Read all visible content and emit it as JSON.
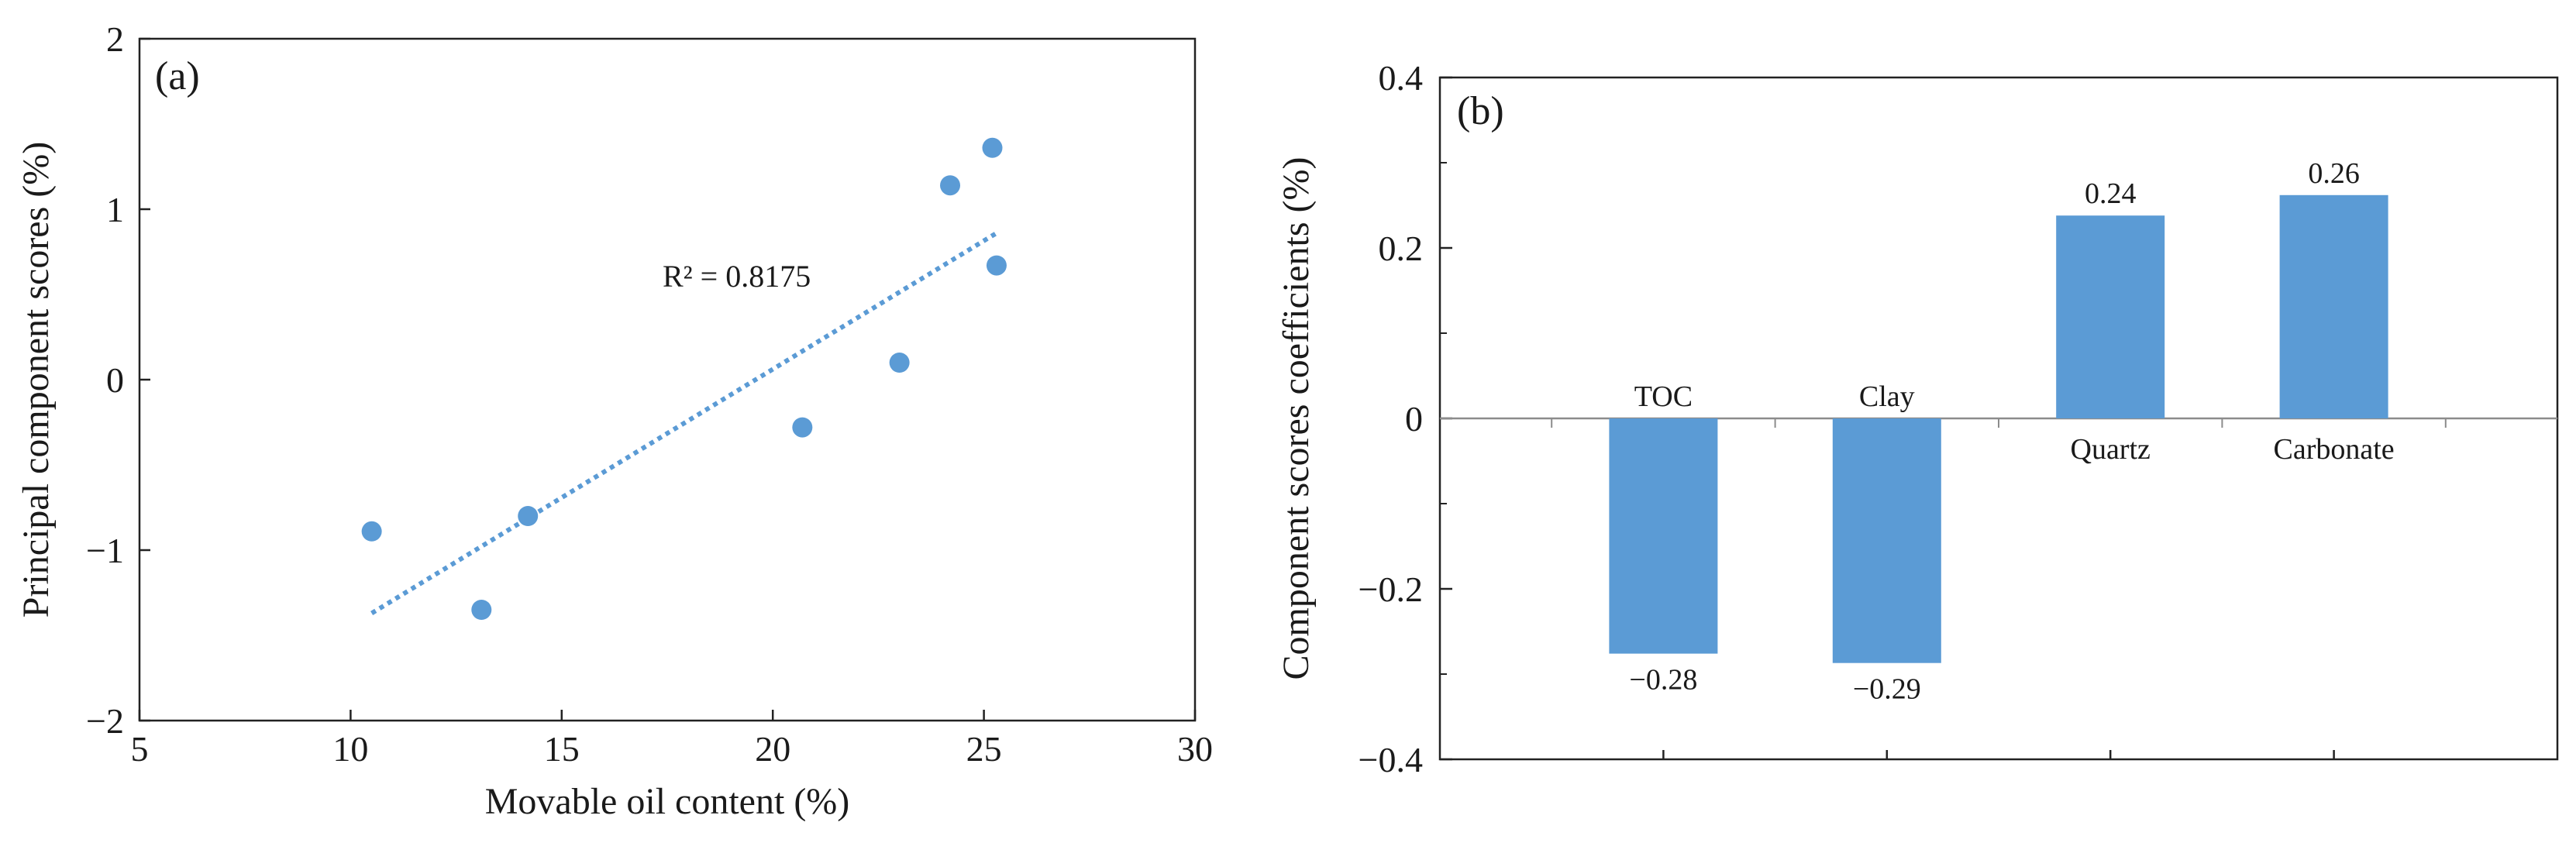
{
  "chart_data": [
    {
      "type": "scatter",
      "panel_label": "(a)",
      "xlabel": "Movable oil content (%)",
      "ylabel": "Principal component scores  (%)",
      "xlim": [
        5,
        30
      ],
      "ylim": [
        -2,
        2
      ],
      "xticks": [
        5,
        10,
        15,
        20,
        25,
        30
      ],
      "yticks": [
        -2,
        -1,
        0,
        1,
        2
      ],
      "xtick_labels": [
        "5",
        "10",
        "15",
        "20",
        "25",
        "30"
      ],
      "ytick_labels": [
        "−2",
        "−1",
        "0",
        "1",
        "2"
      ],
      "points": [
        {
          "x": 10.5,
          "y": -0.89
        },
        {
          "x": 13.1,
          "y": -1.35
        },
        {
          "x": 14.2,
          "y": -0.8
        },
        {
          "x": 20.7,
          "y": -0.28
        },
        {
          "x": 23.0,
          "y": 0.1
        },
        {
          "x": 24.2,
          "y": 1.14
        },
        {
          "x": 25.2,
          "y": 1.36
        },
        {
          "x": 25.3,
          "y": 0.67
        }
      ],
      "trendline": {
        "x": [
          10.5,
          25.3
        ],
        "y": [
          -1.37,
          0.86
        ]
      },
      "annotation": "R² = 0.8175",
      "marker_color": "#5B9BD5"
    },
    {
      "type": "bar",
      "panel_label": "(b)",
      "ylabel": "Component scores coefficients (%)",
      "ylim": [
        -0.4,
        0.4
      ],
      "yticks": [
        -0.4,
        -0.2,
        0,
        0.2,
        0.4
      ],
      "ytick_labels": [
        "−0.4",
        "−0.2",
        "0",
        "0.2",
        "0.4"
      ],
      "categories": [
        "TOC",
        "Clay",
        "Quartz",
        "Carbonate"
      ],
      "values": [
        -0.276,
        -0.287,
        0.238,
        0.262
      ],
      "value_labels": [
        "−0.28",
        "−0.29",
        "0.24",
        "0.26"
      ],
      "bar_color": "#5B9BD5"
    }
  ]
}
